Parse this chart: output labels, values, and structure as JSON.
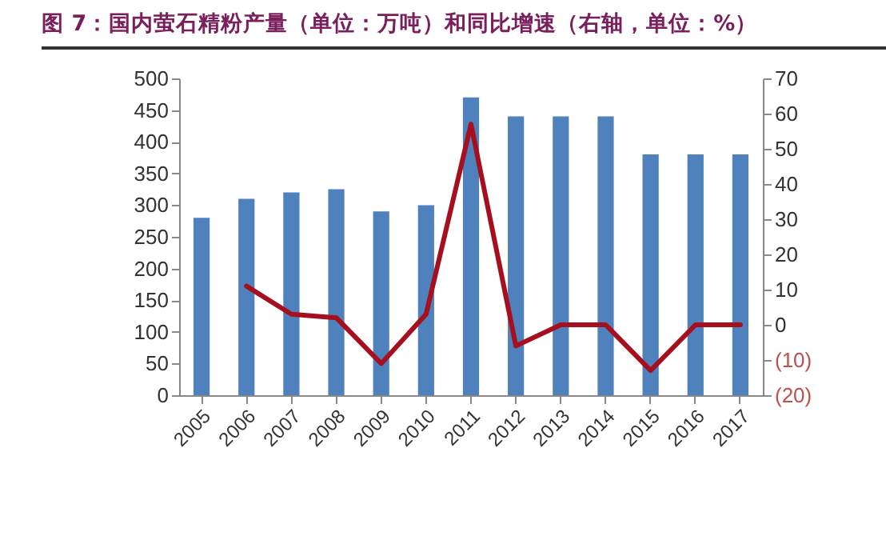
{
  "chart_data": {
    "type": "bar",
    "title": "图 7：国内萤石精粉产量（单位：万吨）和同比增速（右轴，单位：%）",
    "categories": [
      "2005",
      "2006",
      "2007",
      "2008",
      "2009",
      "2010",
      "2011",
      "2012",
      "2013",
      "2014",
      "2015",
      "2016",
      "2017"
    ],
    "series": [
      {
        "color": "#4f81bd",
        "values": [
          280,
          310,
          320,
          325,
          290,
          300,
          470,
          440,
          440,
          440,
          380,
          380,
          380
        ]
      },
      {
        "type": "line",
        "axis": "y2",
        "color": "#a50f1e",
        "values": [
          null,
          11,
          3,
          2,
          -11,
          3,
          57,
          -6,
          0,
          0,
          -13,
          0,
          0
        ]
      }
    ],
    "ylim": [
      0,
      500
    ],
    "yticks": [
      0,
      50,
      100,
      150,
      200,
      250,
      300,
      350,
      400,
      450,
      500
    ],
    "y2lim": [
      -20,
      70
    ],
    "y2ticks": [
      {
        "value": -20,
        "label": "(20)"
      },
      {
        "value": -10,
        "label": "(10)"
      },
      0,
      10,
      20,
      30,
      40,
      50,
      60,
      70
    ],
    "grid": false
  }
}
